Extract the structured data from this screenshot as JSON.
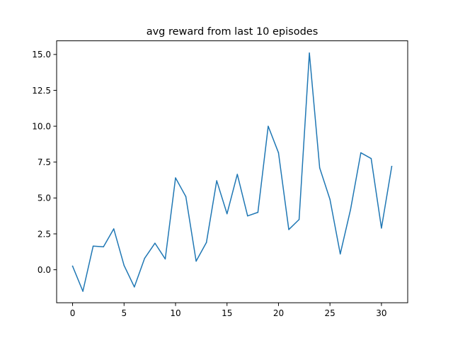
{
  "chart_data": {
    "type": "line",
    "title": "avg reward from last 10 episodes",
    "xlabel": "",
    "ylabel": "",
    "grid": false,
    "xlim": [
      -1.55,
      32.55
    ],
    "ylim": [
      -2.3,
      15.95
    ],
    "xticks": [
      0,
      5,
      10,
      15,
      20,
      25,
      30
    ],
    "xtick_labels": [
      "0",
      "5",
      "10",
      "15",
      "20",
      "25",
      "30"
    ],
    "yticks": [
      0.0,
      2.5,
      5.0,
      7.5,
      10.0,
      12.5,
      15.0
    ],
    "ytick_labels": [
      "0.0",
      "2.5",
      "5.0",
      "7.5",
      "10.0",
      "12.5",
      "15.0"
    ],
    "series": [
      {
        "color": "#1f77b4",
        "x": [
          0,
          1,
          2,
          3,
          4,
          5,
          6,
          7,
          8,
          9,
          10,
          11,
          12,
          13,
          14,
          15,
          16,
          17,
          18,
          19,
          20,
          21,
          22,
          23,
          24,
          25,
          26,
          27,
          28,
          29,
          30,
          31
        ],
        "y": [
          0.25,
          -1.5,
          1.65,
          1.6,
          2.85,
          0.3,
          -1.2,
          0.8,
          1.85,
          0.75,
          6.4,
          5.1,
          0.6,
          1.9,
          6.2,
          3.9,
          6.65,
          3.75,
          4.0,
          10.0,
          8.15,
          2.8,
          3.5,
          15.1,
          7.1,
          4.9,
          1.1,
          4.2,
          8.15,
          7.75,
          2.9,
          7.2
        ]
      }
    ]
  }
}
